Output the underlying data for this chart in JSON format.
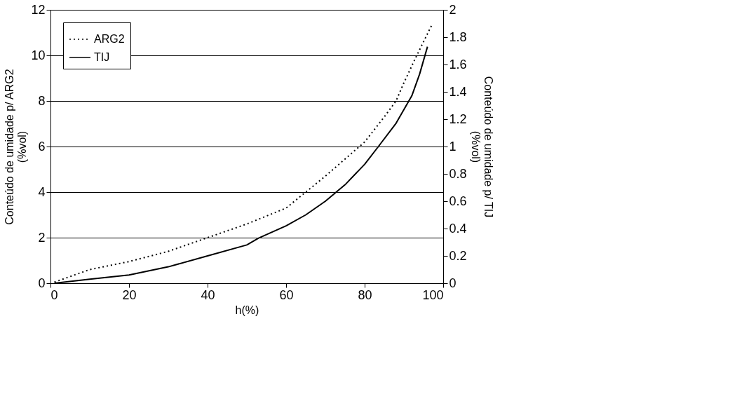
{
  "chart_data": {
    "type": "line",
    "xlabel": "h(%)",
    "ylabel": "Conteúdo de umidade p/ ARG2 (%vol)",
    "y2label": "Conteúdo de umidade p/ TIJ (%vol)",
    "xlim": [
      0,
      100
    ],
    "xticks": [
      0,
      20,
      40,
      60,
      80,
      100
    ],
    "ylim": [
      0,
      12
    ],
    "yticks": [
      0,
      2,
      4,
      6,
      8,
      10,
      12
    ],
    "y2lim": [
      0,
      2
    ],
    "y2ticks": [
      0,
      0.2,
      0.4,
      0.6,
      0.8,
      1,
      1.2,
      1.4,
      1.6,
      1.8,
      2
    ],
    "grid": "y",
    "legend": "top left",
    "marker": "none",
    "series": [
      {
        "name": "ARG2",
        "color": "#000000",
        "line_style": "dotted",
        "x": [
          1,
          10,
          20,
          30,
          40,
          50,
          60,
          65,
          70,
          80,
          85,
          88,
          90,
          93,
          97
        ],
        "values": [
          0.05,
          0.6,
          0.95,
          1.4,
          2.0,
          2.6,
          3.3,
          4.0,
          4.7,
          6.2,
          7.3,
          8.0,
          8.8,
          9.9,
          11.3
        ]
      },
      {
        "name": "TIJ",
        "color": "#000000",
        "line_style": "solid",
        "axis": "y2",
        "x": [
          1,
          10,
          20,
          30,
          40,
          50,
          53,
          60,
          65,
          70,
          75,
          80,
          83.5,
          88,
          90,
          92,
          94,
          96
        ],
        "values": [
          0,
          0.03,
          0.06,
          0.12,
          0.2,
          0.28,
          0.33,
          0.42,
          0.5,
          0.6,
          0.72,
          0.87,
          1.0,
          1.17,
          1.27,
          1.37,
          1.53,
          1.73
        ]
      }
    ]
  }
}
